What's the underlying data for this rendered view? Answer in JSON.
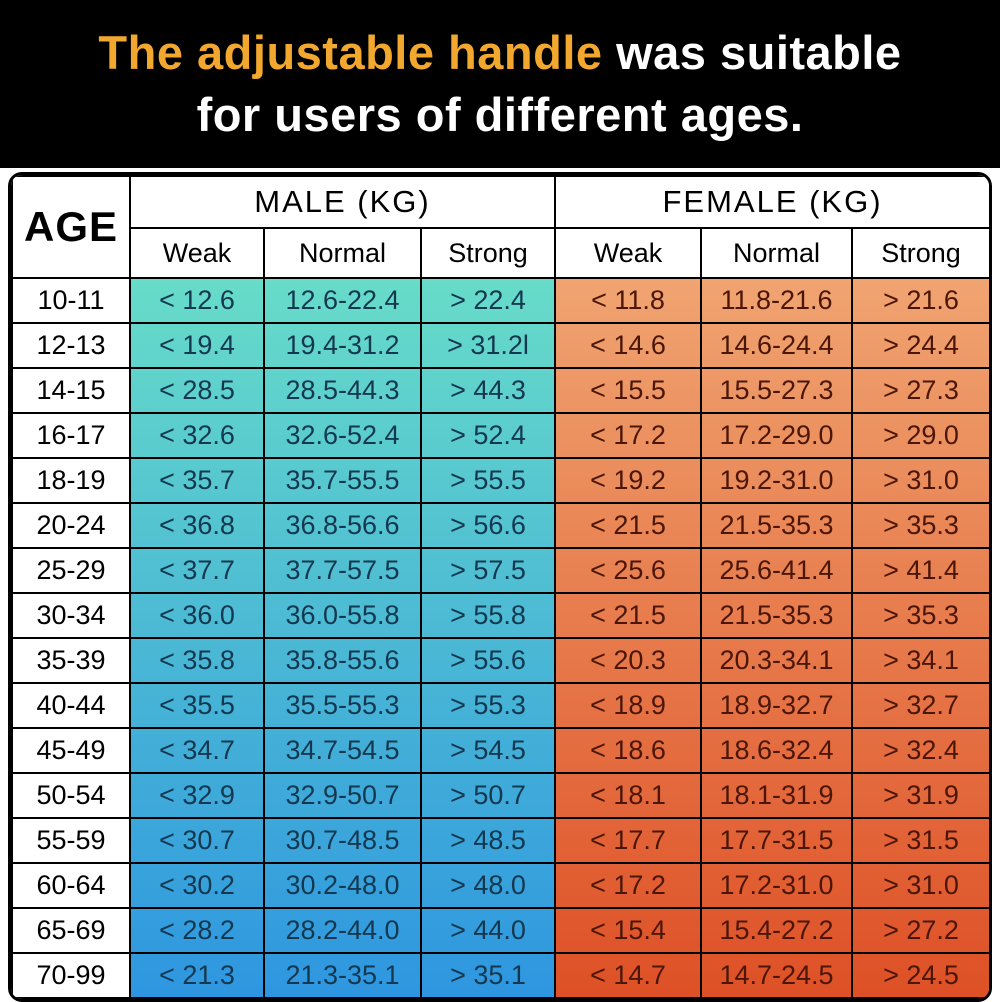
{
  "title": {
    "highlight": "The adjustable handle",
    "rest": " was suitable",
    "line2": "for users of different ages."
  },
  "table": {
    "age_header": "AGE",
    "male_header": "MALE (KG)",
    "female_header": "FEMALE (KG)",
    "sub_headers": [
      "Weak",
      "Normal",
      "Strong"
    ]
  },
  "colors": {
    "title_highlight": "#F2A72E",
    "title_rest": "#FFFFFF",
    "band_background": "#000000",
    "male_gradient_top": "#68DCC9",
    "male_gradient_bottom": "#2E96E0",
    "female_gradient_top": "#F0A471",
    "female_gradient_bottom": "#DE5026",
    "male_text": "#14384F",
    "female_text": "#4B1607"
  },
  "chart_data": {
    "type": "table",
    "title": "The adjustable handle was suitable for users of different ages.",
    "columns": [
      "AGE",
      "MALE (KG) Weak",
      "MALE (KG) Normal",
      "MALE (KG) Strong",
      "FEMALE (KG) Weak",
      "FEMALE (KG) Normal",
      "FEMALE (KG) Strong"
    ],
    "rows": [
      {
        "age": "10-11",
        "male": [
          "< 12.6",
          "12.6-22.4",
          "> 22.4"
        ],
        "female": [
          "< 11.8",
          "11.8-21.6",
          "> 21.6"
        ]
      },
      {
        "age": "12-13",
        "male": [
          "< 19.4",
          "19.4-31.2",
          "> 31.2l"
        ],
        "female": [
          "< 14.6",
          "14.6-24.4",
          "> 24.4"
        ]
      },
      {
        "age": "14-15",
        "male": [
          "< 28.5",
          "28.5-44.3",
          "> 44.3"
        ],
        "female": [
          "< 15.5",
          "15.5-27.3",
          "> 27.3"
        ]
      },
      {
        "age": "16-17",
        "male": [
          "< 32.6",
          "32.6-52.4",
          "> 52.4"
        ],
        "female": [
          "< 17.2",
          "17.2-29.0",
          "> 29.0"
        ]
      },
      {
        "age": "18-19",
        "male": [
          "< 35.7",
          "35.7-55.5",
          "> 55.5"
        ],
        "female": [
          "< 19.2",
          "19.2-31.0",
          "> 31.0"
        ]
      },
      {
        "age": "20-24",
        "male": [
          "< 36.8",
          "36.8-56.6",
          "> 56.6"
        ],
        "female": [
          "< 21.5",
          "21.5-35.3",
          "> 35.3"
        ]
      },
      {
        "age": "25-29",
        "male": [
          "< 37.7",
          "37.7-57.5",
          "> 57.5"
        ],
        "female": [
          "< 25.6",
          "25.6-41.4",
          "> 41.4"
        ]
      },
      {
        "age": "30-34",
        "male": [
          "< 36.0",
          "36.0-55.8",
          "> 55.8"
        ],
        "female": [
          "< 21.5",
          "21.5-35.3",
          "> 35.3"
        ]
      },
      {
        "age": "35-39",
        "male": [
          "< 35.8",
          "35.8-55.6",
          "> 55.6"
        ],
        "female": [
          "< 20.3",
          "20.3-34.1",
          "> 34.1"
        ]
      },
      {
        "age": "40-44",
        "male": [
          "< 35.5",
          "35.5-55.3",
          "> 55.3"
        ],
        "female": [
          "< 18.9",
          "18.9-32.7",
          "> 32.7"
        ]
      },
      {
        "age": "45-49",
        "male": [
          "< 34.7",
          "34.7-54.5",
          "> 54.5"
        ],
        "female": [
          "< 18.6",
          "18.6-32.4",
          "> 32.4"
        ]
      },
      {
        "age": "50-54",
        "male": [
          "< 32.9",
          "32.9-50.7",
          "> 50.7"
        ],
        "female": [
          "< 18.1",
          "18.1-31.9",
          "> 31.9"
        ]
      },
      {
        "age": "55-59",
        "male": [
          "< 30.7",
          "30.7-48.5",
          "> 48.5"
        ],
        "female": [
          "< 17.7",
          "17.7-31.5",
          "> 31.5"
        ]
      },
      {
        "age": "60-64",
        "male": [
          "< 30.2",
          "30.2-48.0",
          "> 48.0"
        ],
        "female": [
          "< 17.2",
          "17.2-31.0",
          "> 31.0"
        ]
      },
      {
        "age": "65-69",
        "male": [
          "< 28.2",
          "28.2-44.0",
          "> 44.0"
        ],
        "female": [
          "< 15.4",
          "15.4-27.2",
          "> 27.2"
        ]
      },
      {
        "age": "70-99",
        "male": [
          "< 21.3",
          "21.3-35.1",
          "> 35.1"
        ],
        "female": [
          "< 14.7",
          "14.7-24.5",
          "> 24.5"
        ]
      }
    ]
  }
}
